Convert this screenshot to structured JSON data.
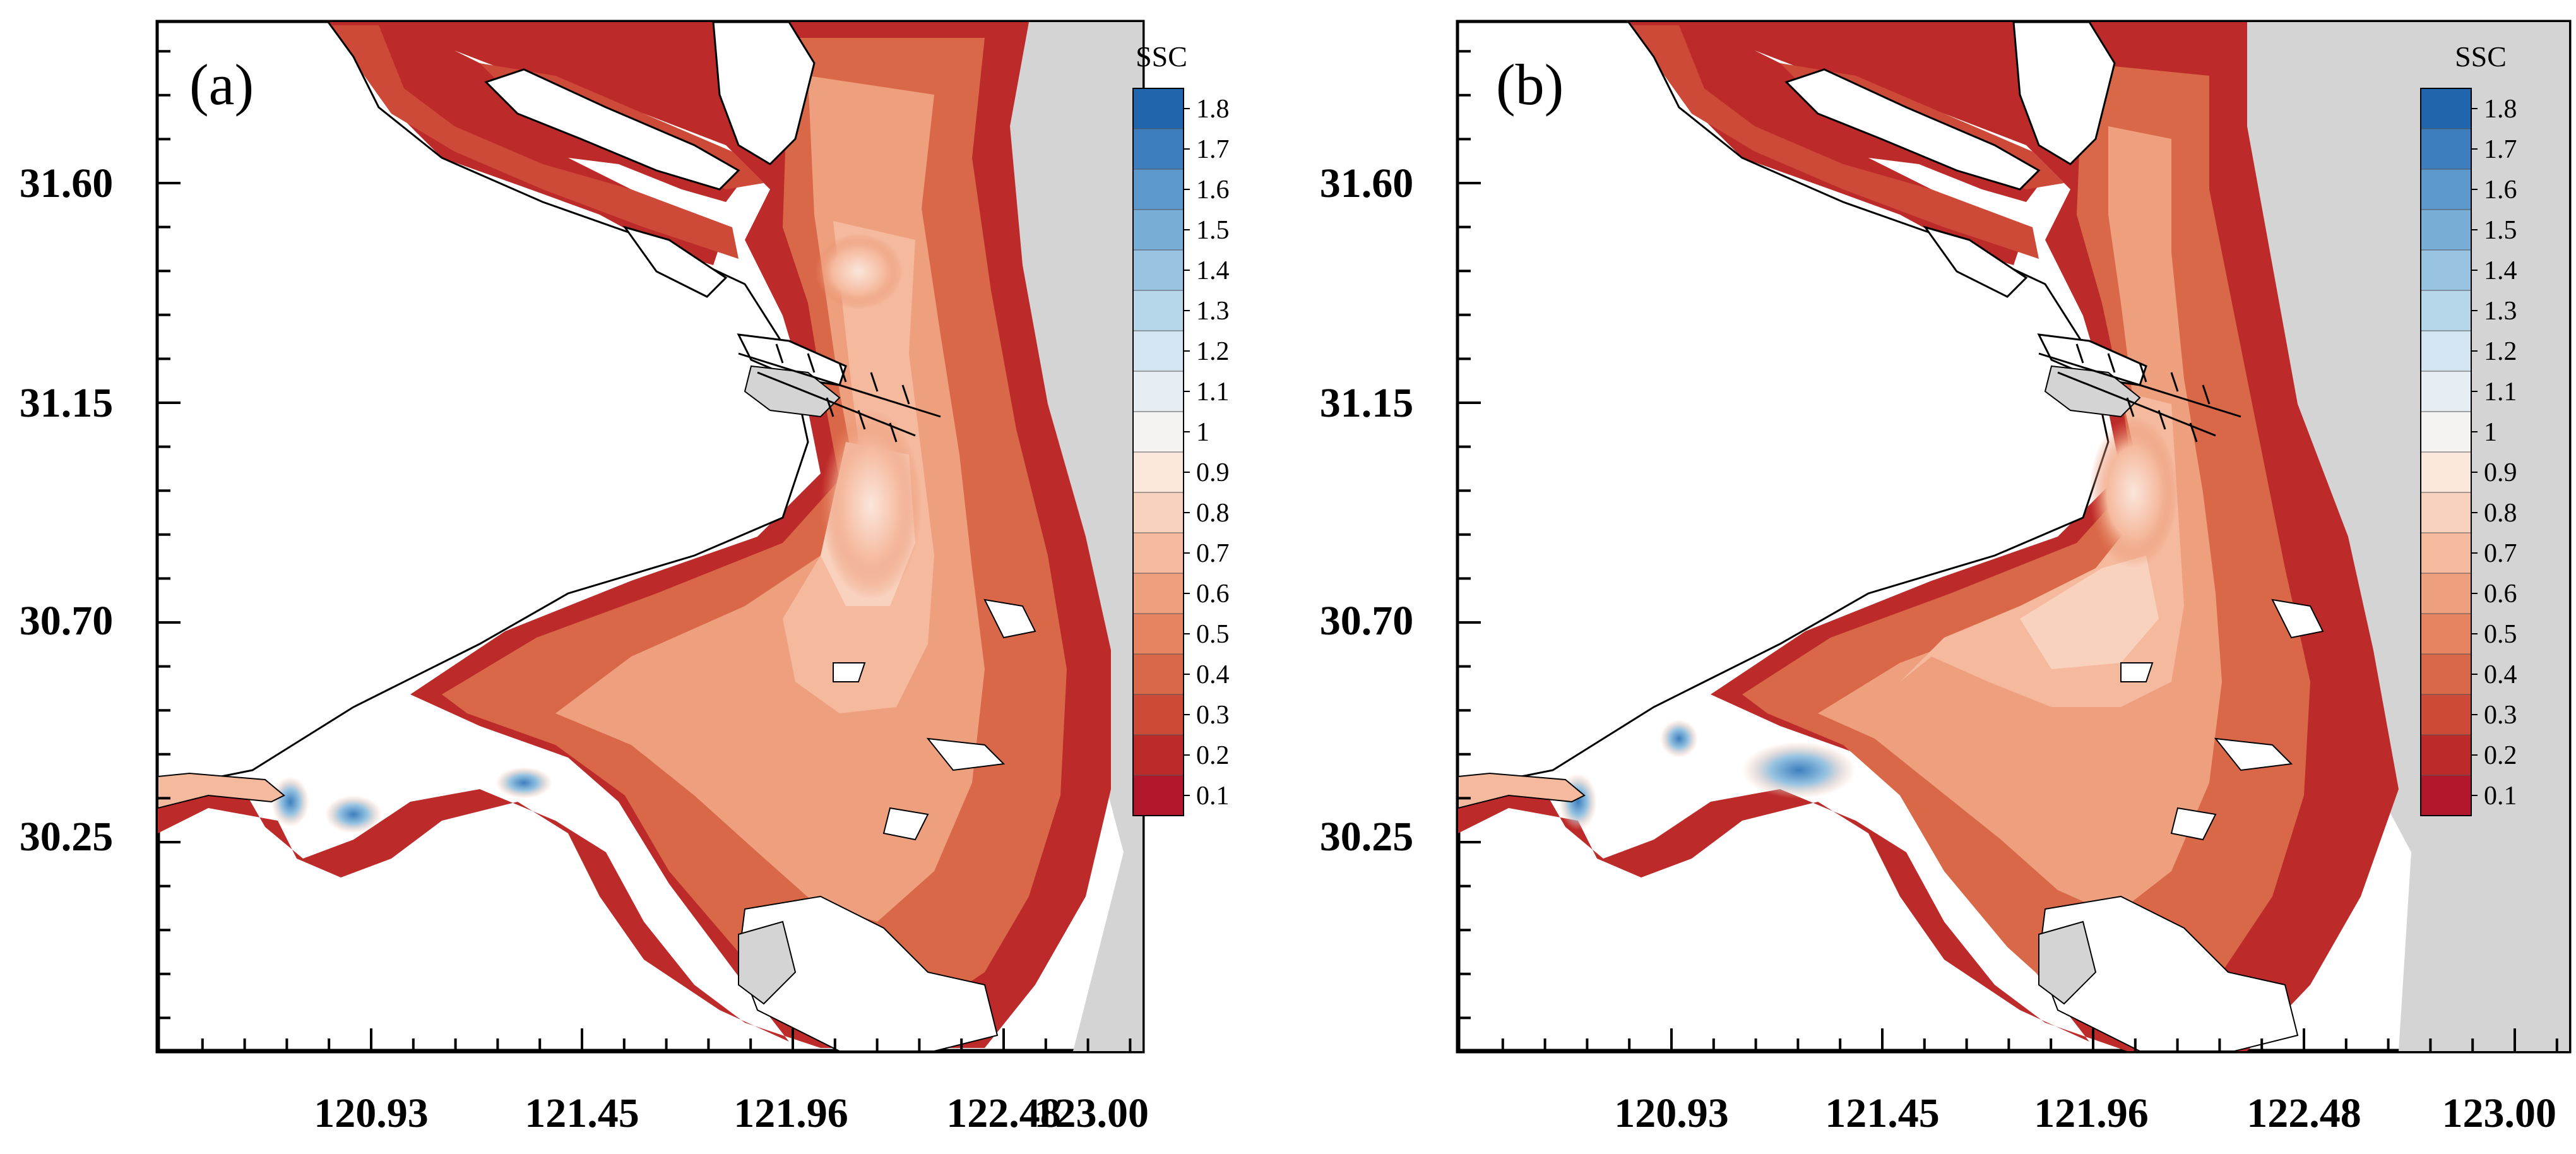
{
  "figure": {
    "panels": [
      {
        "label": "(a)",
        "x_ticks": [
          "120.93",
          "121.45",
          "121.96",
          "122.48",
          "123.00"
        ],
        "y_ticks": [
          "31.60",
          "31.15",
          "30.70",
          "30.25"
        ],
        "colorbar": {
          "title": "SSC",
          "levels": [
            "1.8",
            "1.7",
            "1.6",
            "1.5",
            "1.4",
            "1.3",
            "1.2",
            "1.1",
            "1",
            "0.9",
            "0.8",
            "0.7",
            "0.6",
            "0.5",
            "0.4",
            "0.3",
            "0.2",
            "0.1"
          ]
        }
      },
      {
        "label": "(b)",
        "x_ticks": [
          "120.93",
          "121.45",
          "121.96",
          "122.48",
          "123.00"
        ],
        "y_ticks": [
          "31.60",
          "31.15",
          "30.70",
          "30.25"
        ],
        "colorbar": {
          "title": "SSC",
          "levels": [
            "1.8",
            "1.7",
            "1.6",
            "1.5",
            "1.4",
            "1.3",
            "1.2",
            "1.1",
            "1",
            "0.9",
            "0.8",
            "0.7",
            "0.6",
            "0.5",
            "0.4",
            "0.3",
            "0.2",
            "0.1"
          ]
        }
      }
    ],
    "colorbar_colors": [
      "#2166ac",
      "#3d7fbe",
      "#5b98cb",
      "#78add6",
      "#98c4e2",
      "#b6d6ea",
      "#d2e5f0",
      "#e6eef4",
      "#f5f3f1",
      "#fbe6dc",
      "#f9d2be",
      "#f5b99d",
      "#eea07e",
      "#e5845f",
      "#d96848",
      "#cc4a37",
      "#bd2a2a",
      "#b2182b"
    ],
    "land_color": "#d4d4d4"
  }
}
